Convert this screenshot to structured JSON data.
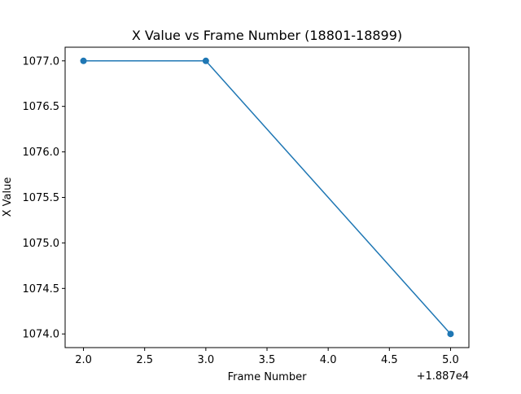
{
  "chart_data": {
    "type": "line",
    "title": "X Value vs Frame Number (18801-18899)",
    "xlabel": "Frame Number",
    "ylabel": "X Value",
    "x_offset_label": "+1.887e4",
    "x": [
      2.0,
      3.0,
      5.0
    ],
    "series": [
      {
        "values": [
          1077.0,
          1077.0,
          1074.0
        ],
        "color": "#1f77b4",
        "marker": "circle"
      }
    ],
    "xlim": [
      1.85,
      5.15
    ],
    "ylim": [
      1073.85,
      1077.15
    ],
    "xticks": [
      2.0,
      2.5,
      3.0,
      3.5,
      4.0,
      4.5,
      5.0
    ],
    "xtick_labels": [
      "2.0",
      "2.5",
      "3.0",
      "3.5",
      "4.0",
      "4.5",
      "5.0"
    ],
    "yticks": [
      1074.0,
      1074.5,
      1075.0,
      1075.5,
      1076.0,
      1076.5,
      1077.0
    ],
    "ytick_labels": [
      "1074.0",
      "1074.5",
      "1075.0",
      "1075.5",
      "1076.0",
      "1076.5",
      "1077.0"
    ],
    "grid": false,
    "legend": "none"
  }
}
